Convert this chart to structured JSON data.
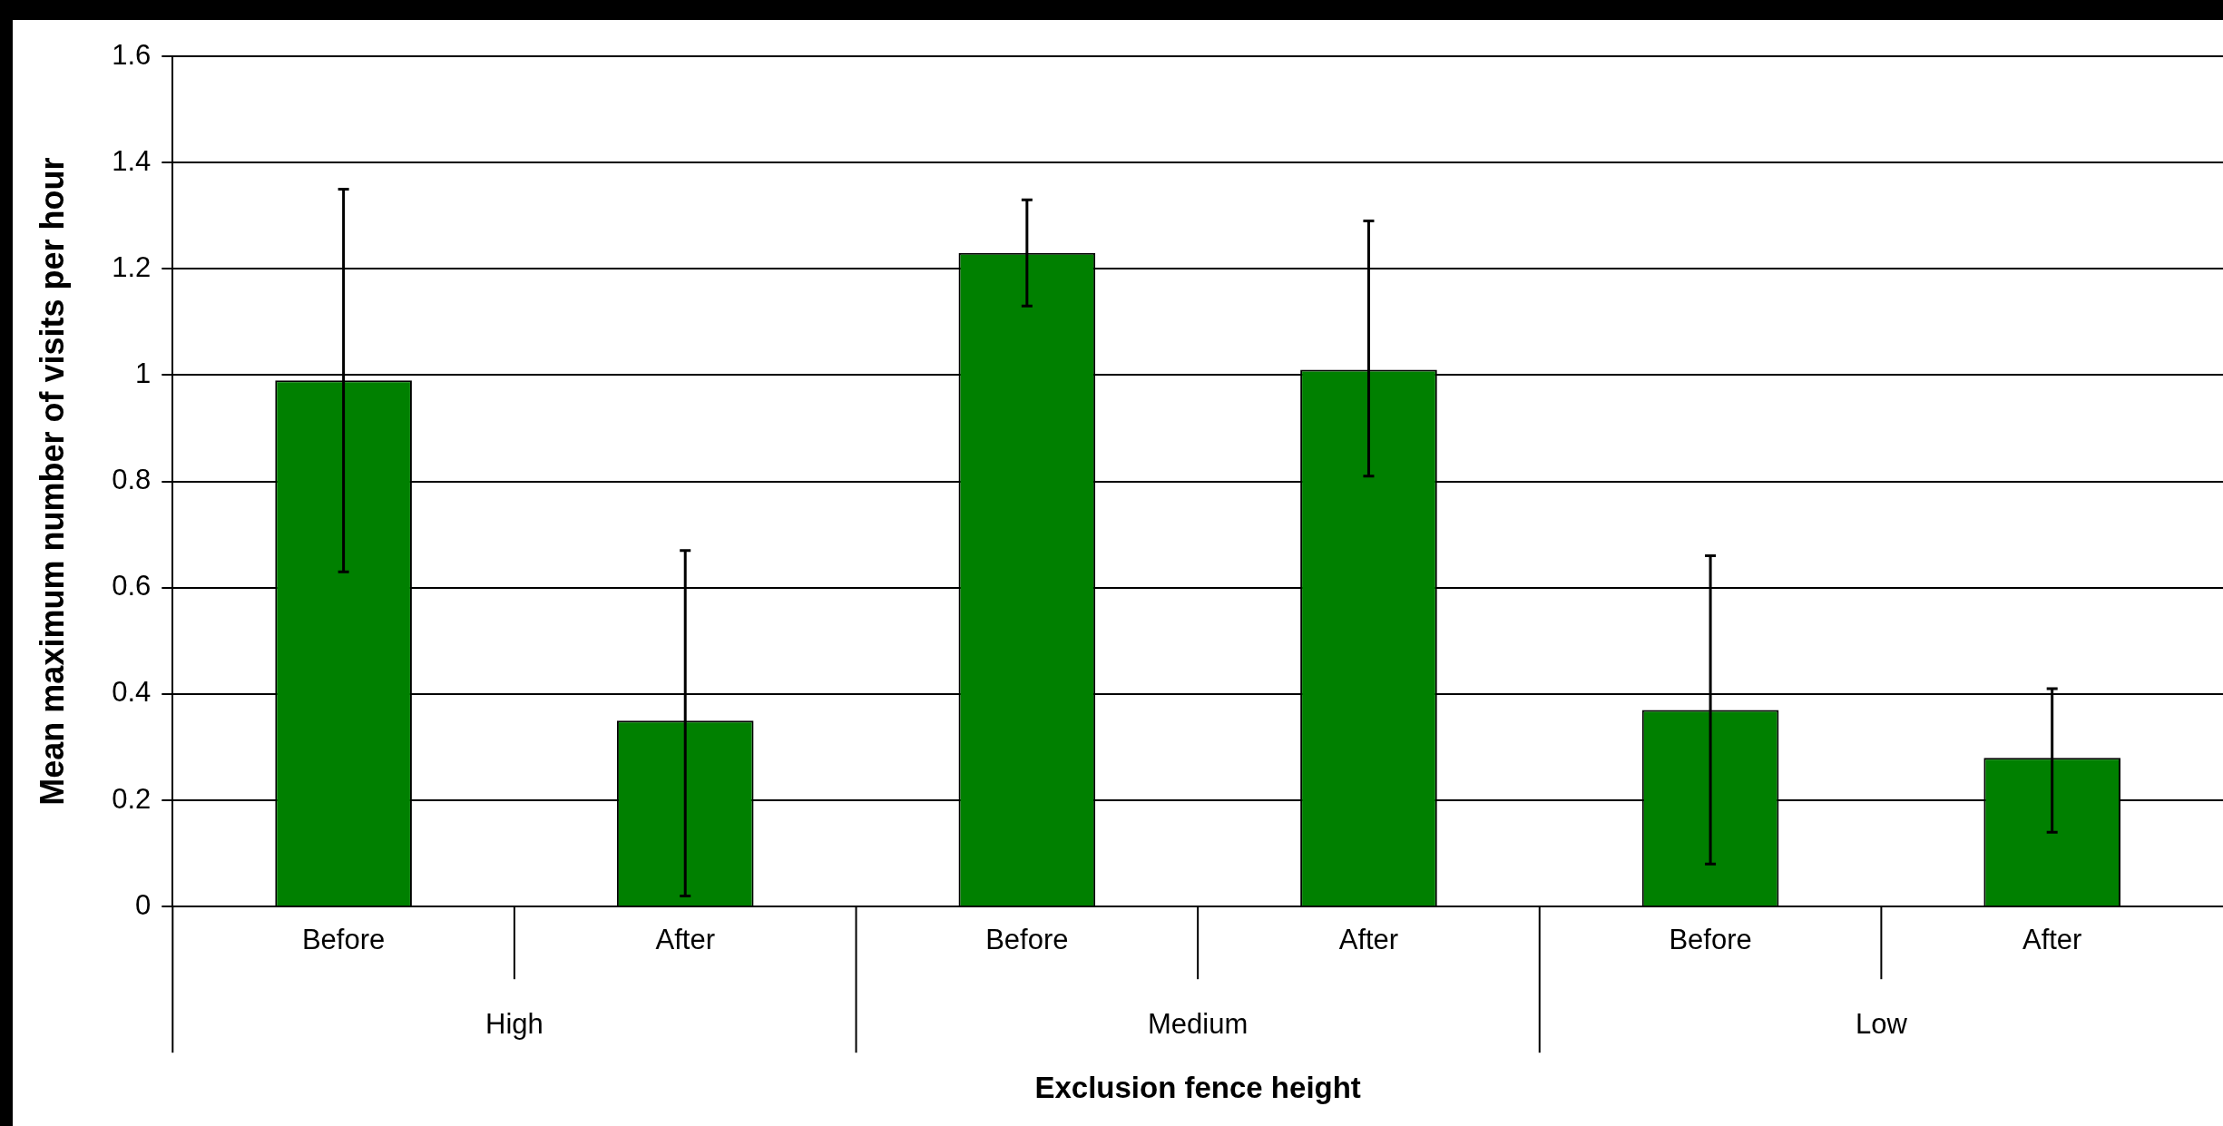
{
  "chart_data": {
    "type": "bar",
    "categories": [
      "Before",
      "After",
      "Before",
      "After",
      "Before",
      "After"
    ],
    "values": [
      0.99,
      0.35,
      1.23,
      1.01,
      0.37,
      0.28
    ],
    "errors": [
      [
        0.63,
        1.35
      ],
      [
        0.02,
        0.67
      ],
      [
        1.13,
        1.33
      ],
      [
        0.81,
        1.29
      ],
      [
        0.08,
        0.66
      ],
      [
        0.14,
        0.41
      ]
    ],
    "color": "#008000",
    "xlabel": "Exclusion fence height",
    "ylabel": "Mean maximum number of visits per hour",
    "annotations": [
      "High",
      "Medium",
      "Low"
    ],
    "ylim": [
      0,
      1.6
    ],
    "yticks": [
      0,
      0.2,
      0.4,
      0.6,
      0.8,
      1,
      1.2,
      1.4,
      1.6
    ],
    "grid": "y"
  }
}
